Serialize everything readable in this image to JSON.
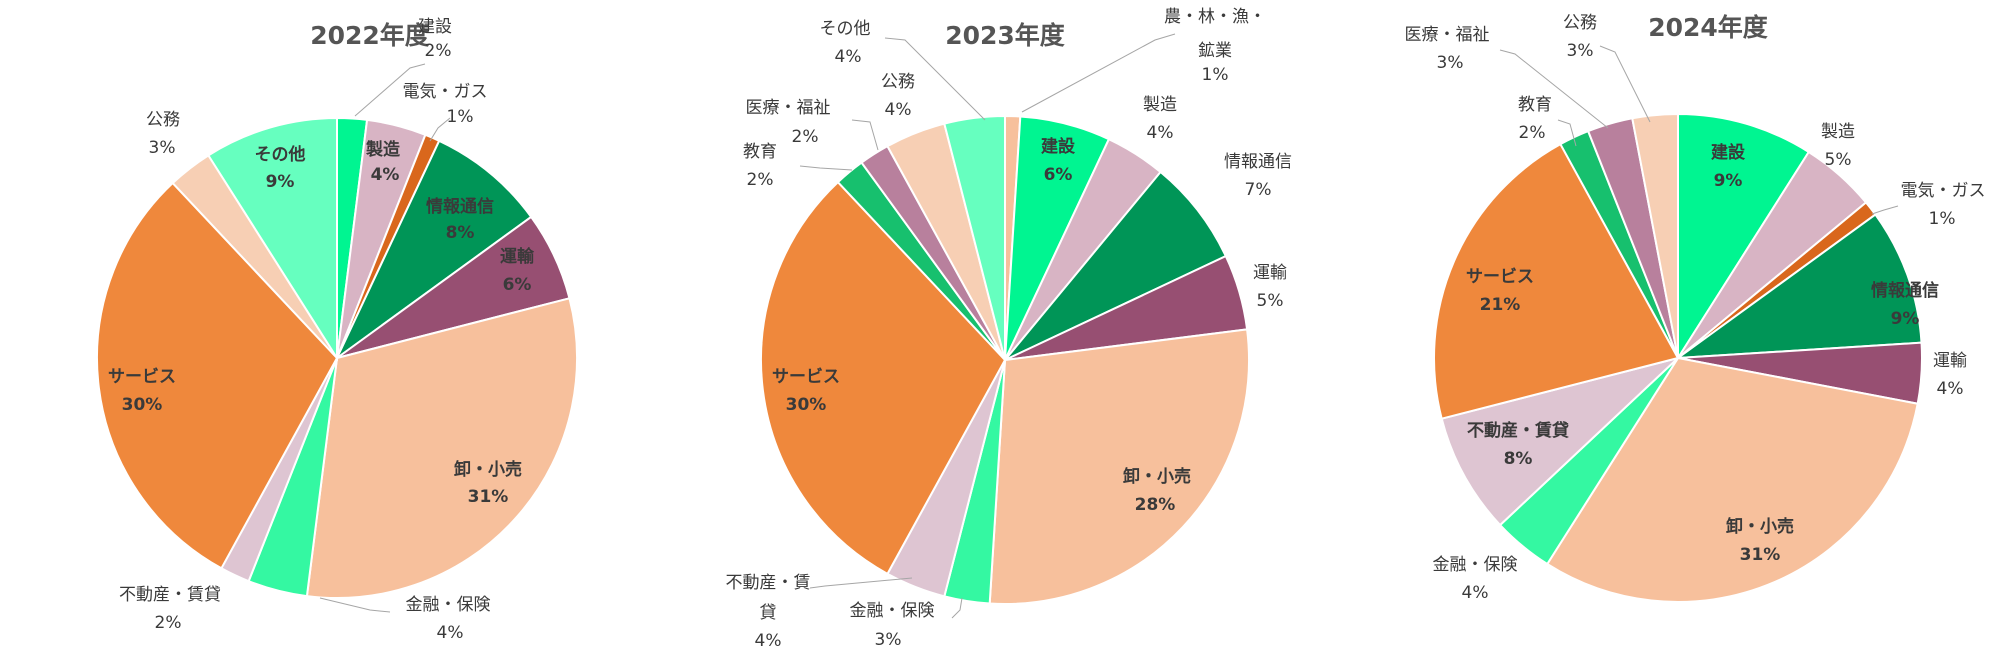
{
  "chart_data": [
    {
      "type": "pie",
      "title": "2022年度",
      "slices": [
        {
          "label": "建設",
          "value_label": "2%",
          "value": 2,
          "color": "#00f591"
        },
        {
          "label": "製造",
          "value_label": "4%",
          "value": 4,
          "color": "#d8b4c4"
        },
        {
          "label": "電気・ガス",
          "value_label": "1%",
          "value": 1,
          "color": "#d9671c"
        },
        {
          "label": "情報通信",
          "value_label": "8%",
          "value": 8,
          "color": "#009557"
        },
        {
          "label": "運輸",
          "value_label": "6%",
          "value": 6,
          "color": "#974f72"
        },
        {
          "label": "卸・小売",
          "value_label": "31%",
          "value": 31,
          "color": "#f7c09c"
        },
        {
          "label": "金融・保険",
          "value_label": "4%",
          "value": 4,
          "color": "#34f8a2"
        },
        {
          "label": "不動産・賃貸",
          "value_label": "2%",
          "value": 2,
          "color": "#dec5d2"
        },
        {
          "label": "サービス",
          "value_label": "30%",
          "value": 30,
          "color": "#ef883c"
        },
        {
          "label": "公務",
          "value_label": "3%",
          "value": 3,
          "color": "#f7cfb4"
        },
        {
          "label": "その他",
          "value_label": "9%",
          "value": 9,
          "color": "#66ffbf"
        }
      ]
    },
    {
      "type": "pie",
      "title": "2023年度",
      "slices": [
        {
          "label": "農・林・漁・鉱業",
          "value_label": "1%",
          "value": 1,
          "color": "#f7c09c"
        },
        {
          "label": "建設",
          "value_label": "6%",
          "value": 6,
          "color": "#00f591"
        },
        {
          "label": "製造",
          "value_label": "4%",
          "value": 4,
          "color": "#d8b4c4"
        },
        {
          "label": "情報通信",
          "value_label": "7%",
          "value": 7,
          "color": "#009557"
        },
        {
          "label": "運輸",
          "value_label": "5%",
          "value": 5,
          "color": "#974f72"
        },
        {
          "label": "卸・小売",
          "value_label": "28%",
          "value": 28,
          "color": "#f7c09c"
        },
        {
          "label": "金融・保険",
          "value_label": "3%",
          "value": 3,
          "color": "#34f8a2"
        },
        {
          "label": "不動産・賃貸",
          "value_label": "4%",
          "value": 4,
          "color": "#dec5d2"
        },
        {
          "label": "サービス",
          "value_label": "30%",
          "value": 30,
          "color": "#ef883c"
        },
        {
          "label": "教育",
          "value_label": "2%",
          "value": 2,
          "color": "#17c06e"
        },
        {
          "label": "医療・福祉",
          "value_label": "2%",
          "value": 2,
          "color": "#b8809d"
        },
        {
          "label": "公務",
          "value_label": "4%",
          "value": 4,
          "color": "#f7cfb4"
        },
        {
          "label": "その他",
          "value_label": "4%",
          "value": 4,
          "color": "#66ffbf"
        }
      ]
    },
    {
      "type": "pie",
      "title": "2024年度",
      "slices": [
        {
          "label": "建設",
          "value_label": "9%",
          "value": 9,
          "color": "#00f591"
        },
        {
          "label": "製造",
          "value_label": "5%",
          "value": 5,
          "color": "#d8b4c4"
        },
        {
          "label": "電気・ガス",
          "value_label": "1%",
          "value": 1,
          "color": "#d9671c"
        },
        {
          "label": "情報通信",
          "value_label": "9%",
          "value": 9,
          "color": "#009557"
        },
        {
          "label": "運輸",
          "value_label": "4%",
          "value": 4,
          "color": "#974f72"
        },
        {
          "label": "卸・小売",
          "value_label": "31%",
          "value": 31,
          "color": "#f7c09c"
        },
        {
          "label": "金融・保険",
          "value_label": "4%",
          "value": 4,
          "color": "#34f8a2"
        },
        {
          "label": "不動産・賃貸",
          "value_label": "8%",
          "value": 8,
          "color": "#dec5d2"
        },
        {
          "label": "サービス",
          "value_label": "21%",
          "value": 21,
          "color": "#ef883c"
        },
        {
          "label": "教育",
          "value_label": "2%",
          "value": 2,
          "color": "#17c06e"
        },
        {
          "label": "医療・福祉",
          "value_label": "3%",
          "value": 3,
          "color": "#b8809d"
        },
        {
          "label": "公務",
          "value_label": "3%",
          "value": 3,
          "color": "#f7cfb4"
        }
      ]
    }
  ]
}
